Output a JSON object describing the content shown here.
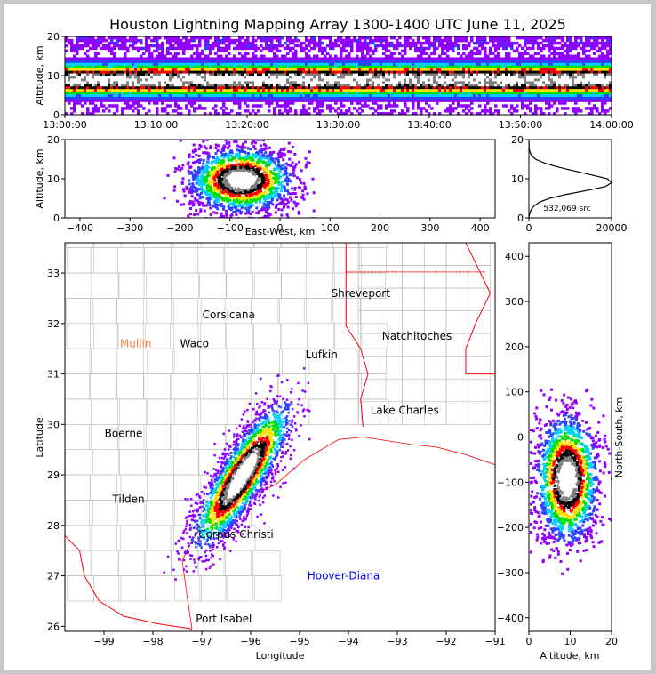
{
  "chart_data": [
    {
      "type": "heatmap",
      "title": "Houston Lightning Mapping Array 1300-1400 UTC June 11, 2025",
      "panel": "time-altitude",
      "ylabel": "Altitude, km",
      "xlabel": "",
      "ylim": [
        0,
        20
      ],
      "y_ticks": [
        "0",
        "10",
        "20"
      ],
      "x_ticks": [
        "13:00:00",
        "13:10:00",
        "13:20:00",
        "13:30:00",
        "13:40:00",
        "13:50:00",
        "14:00:00"
      ],
      "activity_core_altitude_km": [
        6,
        13
      ],
      "activity_peak_altitude_km": 9
    },
    {
      "type": "heatmap",
      "panel": "east-west-altitude",
      "xlabel": "East-West, km",
      "ylabel": "Altitude, km",
      "xlim": [
        -430,
        430
      ],
      "ylim": [
        0,
        20
      ],
      "x_ticks": [
        "−400",
        "−300",
        "−200",
        "−100",
        "0",
        "100",
        "200",
        "300",
        "400"
      ],
      "y_ticks": [
        "0",
        "10",
        "20"
      ],
      "cluster_center_km": [
        -80,
        10
      ]
    },
    {
      "type": "line",
      "panel": "altitude-histogram",
      "annotation": "532,069 src",
      "xlim": [
        0,
        20000
      ],
      "ylim": [
        0,
        20
      ],
      "x_ticks": [
        "0",
        "20000"
      ],
      "y_ticks": [
        "0",
        "10",
        "20"
      ],
      "x": [
        0,
        60,
        200,
        500,
        1200,
        2500,
        5000,
        9000,
        14000,
        18500,
        20000,
        19000,
        15000,
        11000,
        7000,
        3800,
        1600,
        600,
        200,
        50,
        0
      ],
      "y": [
        0,
        0.5,
        1,
        2,
        3,
        4,
        5,
        6,
        7,
        8,
        9,
        10,
        11,
        12,
        13,
        14,
        15,
        16,
        17,
        18,
        20
      ]
    },
    {
      "type": "scatter",
      "panel": "plan-view-map",
      "xlabel": "Longitude",
      "ylabel": "Latitude",
      "xlim": [
        -99.8,
        -91
      ],
      "ylim": [
        25.9,
        33.6
      ],
      "x_ticks": [
        "−99",
        "−98",
        "−97",
        "−96",
        "−95",
        "−94",
        "−93",
        "−92",
        "−91"
      ],
      "y_ticks": [
        "26",
        "27",
        "28",
        "29",
        "30",
        "31",
        "32",
        "33"
      ],
      "cities": [
        {
          "name": "Shreveport",
          "lon": -93.75,
          "lat": 32.6,
          "color": "#000000"
        },
        {
          "name": "Corsicana",
          "lon": -96.45,
          "lat": 32.17,
          "color": "#000000"
        },
        {
          "name": "Mullin",
          "lon": -98.35,
          "lat": 31.6,
          "color": "#ff8040"
        },
        {
          "name": "Waco",
          "lon": -97.15,
          "lat": 31.6,
          "color": "#000000"
        },
        {
          "name": "Natchitoches",
          "lon": -92.6,
          "lat": 31.75,
          "color": "#000000"
        },
        {
          "name": "Lufkin",
          "lon": -94.55,
          "lat": 31.38,
          "color": "#000000"
        },
        {
          "name": "Lake Charles",
          "lon": -92.85,
          "lat": 30.28,
          "color": "#000000"
        },
        {
          "name": "Boerne",
          "lon": -98.6,
          "lat": 29.82,
          "color": "#000000"
        },
        {
          "name": "Tilden",
          "lon": -98.5,
          "lat": 28.52,
          "color": "#000000"
        },
        {
          "name": "Corpus Christi",
          "lon": -96.3,
          "lat": 27.82,
          "color": "#000000"
        },
        {
          "name": "Hoover-Diana",
          "lon": -94.1,
          "lat": 27.0,
          "color": "#0000ff"
        },
        {
          "name": "Port Isabel",
          "lon": -96.55,
          "lat": 26.15,
          "color": "#000000"
        }
      ],
      "storm_core": {
        "lon": -96.2,
        "lat": 29.0
      }
    },
    {
      "type": "heatmap",
      "panel": "altitude-north-south",
      "xlabel": "Altitude, km",
      "ylabel": "North-South, km",
      "xlim": [
        0,
        20
      ],
      "ylim": [
        -430,
        430
      ],
      "x_ticks": [
        "0",
        "10",
        "20"
      ],
      "y_ticks": [
        "−400",
        "−300",
        "−200",
        "−100",
        "0",
        "100",
        "200",
        "300",
        "400"
      ],
      "cluster_center": [
        9,
        -90
      ]
    }
  ],
  "colors": {
    "density_scale": [
      "#9000ff",
      "#3040ff",
      "#00d0ff",
      "#00e000",
      "#ffe000",
      "#ff0000",
      "#000000",
      "#808080",
      "#ffffff"
    ],
    "state_border": "#ff0000",
    "county_line": "#bbbbbb"
  }
}
